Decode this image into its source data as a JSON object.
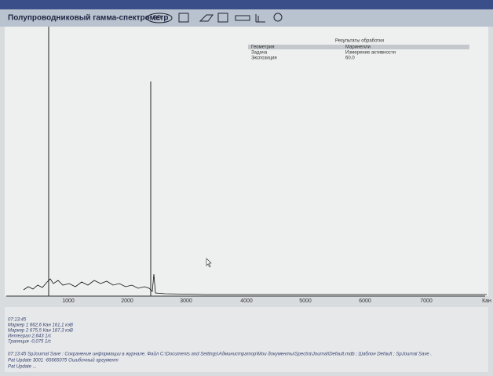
{
  "header": {
    "title": "Полупроводниковый гамма-спектрометр",
    "badge": "60"
  },
  "results": {
    "title": "Результаты обработки",
    "rows": [
      [
        "Геометрия",
        "Маринелли"
      ],
      [
        "Задача",
        "Измерение активности"
      ],
      [
        "Экспозиция",
        "60.0"
      ]
    ]
  },
  "axis": {
    "ticks": [
      "1000",
      "2000",
      "3000",
      "4000",
      "5000",
      "6000",
      "7000"
    ],
    "unit": "Кан"
  },
  "log": {
    "lines": [
      "07:13:45",
      "Маркер 1   662,6 Кан   161,1 кэВ",
      "Маркер 2   675,5 Кан   187,3 кэВ",
      "Интеграл   2,643 1/с",
      "Трапеция   -0,075 1/с",
      "07:13:45  SpJournal Save : Сохранение информации в журнале. Файл C:\\Documents and Settings\\Администратор\\Мои документы\\Spectra\\Journal\\Default.mdb ;  Шаблон Default ;  SpJournal Save .",
      "Pat Update  3001 -65665075 Ошибочный аргумент",
      "Pat Update  ..."
    ]
  }
}
